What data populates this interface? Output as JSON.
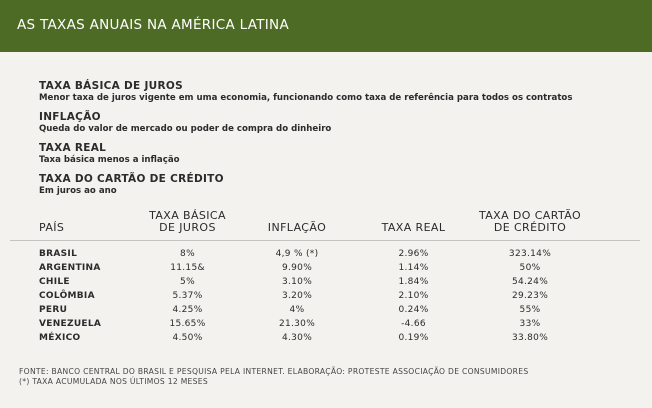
{
  "header": {
    "title": "AS TAXAS ANUAIS NA AMÉRICA LATINA"
  },
  "definitions": [
    {
      "term": "TAXA  BÁSICA DE JUROS",
      "desc": "Menor taxa de juros vigente em uma economia, funcionando como taxa de referência para todos os contratos"
    },
    {
      "term": "INFLAÇÃO",
      "desc": "Queda do valor de mercado ou poder de compra do dinheiro"
    },
    {
      "term": "TAXA REAL",
      "desc": "Taxa básica menos a inflação"
    },
    {
      "term": "TAXA DO CARTÃO DE CRÉDITO",
      "desc": "Em juros ao ano"
    }
  ],
  "table": {
    "headers": {
      "pais": "PAÍS",
      "taxa_basica_1": "TAXA BÁSICA",
      "taxa_basica_2": "DE JUROS",
      "inflacao": "INFLAÇÃO",
      "taxa_real": "TAXA REAL",
      "cartao_1": "TAXA DO CARTÃO",
      "cartao_2": "DE CRÉDITO"
    },
    "rows": [
      {
        "pais": "BRASIL",
        "basica": "8%",
        "inflacao": "4,9 % (*)",
        "real": "2.96%",
        "cartao": "323.14%"
      },
      {
        "pais": "ARGENTINA",
        "basica": "11.15&",
        "inflacao": "9.90%",
        "real": "1.14%",
        "cartao": "50%"
      },
      {
        "pais": "CHILE",
        "basica": "5%",
        "inflacao": "3.10%",
        "real": "1.84%",
        "cartao": "54.24%"
      },
      {
        "pais": "COLÔMBIA",
        "basica": "5.37%",
        "inflacao": "3.20%",
        "real": "2.10%",
        "cartao": "29.23%"
      },
      {
        "pais": "PERU",
        "basica": "4.25%",
        "inflacao": "4%",
        "real": "0.24%",
        "cartao": "55%"
      },
      {
        "pais": "VENEZUELA",
        "basica": "15.65%",
        "inflacao": "21.30%",
        "real": "-4.66",
        "cartao": "33%"
      },
      {
        "pais": "MÉXICO",
        "basica": "4.50%",
        "inflacao": "4.30%",
        "real": "0.19%",
        "cartao": "33.80%"
      }
    ]
  },
  "footer": {
    "source": "FONTE: BANCO CENTRAL DO BRASIL E PESQUISA PELA INTERNET. ELABORAÇÃO: PROTESTE ASSOCIAÇÃO DE CONSUMIDORES",
    "note": "(*) TAXA ACUMULADA NOS ÚLTIMOS 12 MESES"
  }
}
